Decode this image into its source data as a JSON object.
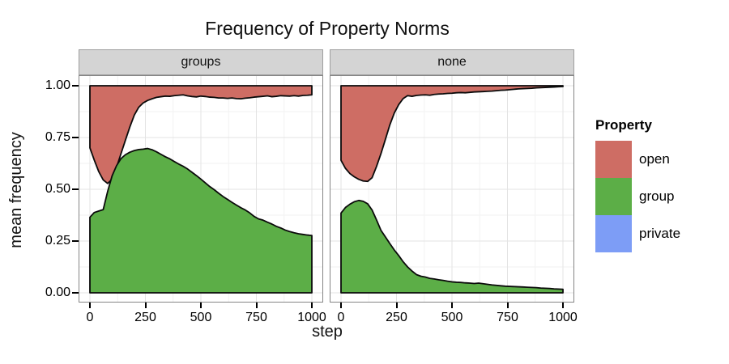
{
  "title": "Frequency of Property Norms",
  "x_axis": {
    "label": "step",
    "ticks": [
      "0",
      "250",
      "500",
      "750",
      "1000"
    ],
    "tick_values": [
      0,
      250,
      500,
      750,
      1000
    ],
    "range": [
      0,
      1000
    ]
  },
  "y_axis": {
    "label": "mean frequency",
    "ticks": [
      "1.00",
      "0.75",
      "0.50",
      "0.25",
      "0.00"
    ],
    "tick_values": [
      1,
      0.75,
      0.5,
      0.25,
      0
    ],
    "range": [
      0,
      1
    ]
  },
  "legend": {
    "title": "Property",
    "items": [
      {
        "label": "open",
        "color": "#CE6D64"
      },
      {
        "label": "group",
        "color": "#5CAE47"
      },
      {
        "label": "private",
        "color": "#7D9DF6"
      }
    ]
  },
  "style_colors": {
    "outline": "#0a0a0a",
    "strip_bg": "#d4d4d4",
    "panel_border": "#858585",
    "grid_major": "#e3e3e3",
    "grid_minor": "#f2f2f2",
    "panel_bg": "#ffffff"
  },
  "chart_data": {
    "type": "area",
    "stacked": true,
    "title": "Frequency of Property Norms",
    "xlabel": "step",
    "ylabel": "mean frequency",
    "xlim": [
      0,
      1000
    ],
    "ylim": [
      0,
      1
    ],
    "grid": true,
    "legend_position": "right",
    "stack_order_bottom_to_top": [
      "group",
      "private",
      "open"
    ],
    "note": "values are cumulative stacked boundaries; open fills from private_cum up to 1.0",
    "steps": [
      0,
      20,
      40,
      60,
      80,
      100,
      120,
      140,
      160,
      180,
      200,
      220,
      240,
      260,
      280,
      300,
      320,
      340,
      360,
      380,
      400,
      420,
      440,
      460,
      480,
      500,
      520,
      540,
      560,
      580,
      600,
      620,
      640,
      660,
      680,
      700,
      720,
      740,
      760,
      780,
      800,
      820,
      840,
      860,
      880,
      900,
      920,
      940,
      960,
      980,
      1000
    ],
    "facets": [
      {
        "label": "groups",
        "group_cum": [
          0.365,
          0.388,
          0.395,
          0.402,
          0.49,
          0.565,
          0.614,
          0.648,
          0.667,
          0.679,
          0.687,
          0.692,
          0.694,
          0.697,
          0.691,
          0.681,
          0.669,
          0.657,
          0.647,
          0.634,
          0.622,
          0.611,
          0.598,
          0.582,
          0.566,
          0.549,
          0.531,
          0.513,
          0.498,
          0.481,
          0.465,
          0.451,
          0.437,
          0.424,
          0.411,
          0.4,
          0.386,
          0.369,
          0.357,
          0.351,
          0.341,
          0.332,
          0.321,
          0.313,
          0.303,
          0.296,
          0.29,
          0.285,
          0.282,
          0.279,
          0.277
        ],
        "private_cum": [
          0.7,
          0.64,
          0.585,
          0.545,
          0.528,
          0.549,
          0.606,
          0.672,
          0.737,
          0.801,
          0.858,
          0.896,
          0.917,
          0.929,
          0.937,
          0.944,
          0.947,
          0.95,
          0.949,
          0.952,
          0.954,
          0.956,
          0.951,
          0.948,
          0.946,
          0.95,
          0.948,
          0.945,
          0.944,
          0.941,
          0.941,
          0.939,
          0.941,
          0.938,
          0.937,
          0.94,
          0.942,
          0.945,
          0.947,
          0.949,
          0.951,
          0.947,
          0.949,
          0.952,
          0.951,
          0.95,
          0.952,
          0.95,
          0.953,
          0.954,
          0.956
        ]
      },
      {
        "label": "none",
        "group_cum": [
          0.385,
          0.412,
          0.428,
          0.44,
          0.446,
          0.442,
          0.43,
          0.4,
          0.352,
          0.302,
          0.27,
          0.238,
          0.207,
          0.18,
          0.15,
          0.125,
          0.105,
          0.088,
          0.08,
          0.076,
          0.07,
          0.067,
          0.063,
          0.06,
          0.056,
          0.053,
          0.051,
          0.05,
          0.048,
          0.047,
          0.045,
          0.047,
          0.044,
          0.041,
          0.038,
          0.036,
          0.034,
          0.032,
          0.031,
          0.03,
          0.029,
          0.028,
          0.027,
          0.026,
          0.025,
          0.023,
          0.022,
          0.021,
          0.019,
          0.018,
          0.017
        ],
        "private_cum": [
          0.64,
          0.601,
          0.576,
          0.56,
          0.548,
          0.54,
          0.538,
          0.556,
          0.61,
          0.672,
          0.741,
          0.811,
          0.868,
          0.909,
          0.938,
          0.952,
          0.949,
          0.953,
          0.955,
          0.956,
          0.954,
          0.958,
          0.96,
          0.961,
          0.963,
          0.964,
          0.966,
          0.967,
          0.966,
          0.968,
          0.97,
          0.971,
          0.972,
          0.973,
          0.974,
          0.976,
          0.978,
          0.979,
          0.981,
          0.983,
          0.985,
          0.986,
          0.987,
          0.988,
          0.99,
          0.991,
          0.992,
          0.993,
          0.994,
          0.995,
          0.996
        ]
      }
    ]
  }
}
